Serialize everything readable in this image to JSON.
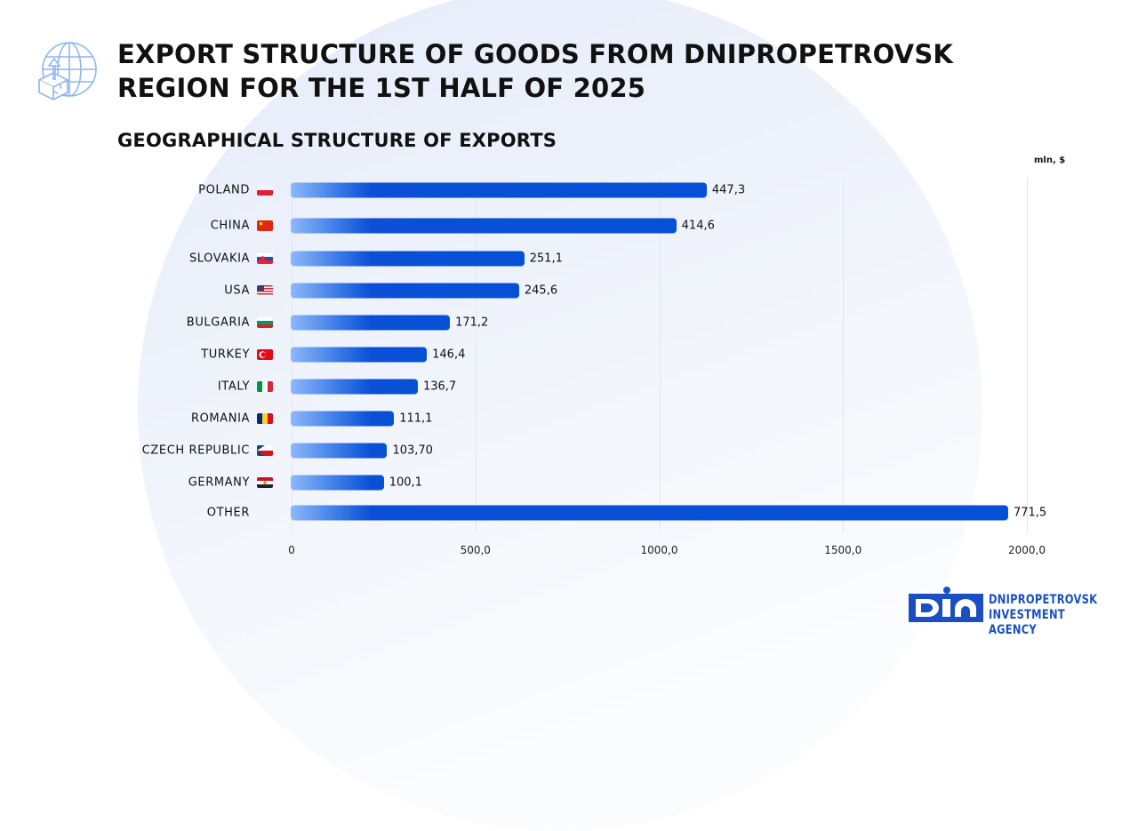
{
  "header": {
    "title_line1": "EXPORT STRUCTURE OF GOODS FROM DNIPROPETROVSK",
    "title_line2": "REGION FOR THE 1ST HALF OF 2025",
    "icon": "globe-export-box-icon"
  },
  "chart_data": {
    "type": "bar",
    "orientation": "horizontal",
    "title": "GEOGRAPHICAL STRUCTURE OF EXPORTS",
    "unit": "mln, $",
    "categories": [
      "POLAND",
      "CHINA",
      "SLOVAKIA",
      "USA",
      "BULGARIA",
      "TURKEY",
      "ITALY",
      "ROMANIA",
      "CZECH REPUBLIC",
      "GERMANY",
      "OTHER"
    ],
    "value_labels": [
      "447,3",
      "414,6",
      "251,1",
      "245,6",
      "171,2",
      "146,4",
      "136,7",
      "111,1",
      "103,70",
      "100,1",
      "771,5"
    ],
    "values": [
      447.3,
      414.6,
      251.1,
      245.6,
      171.2,
      146.4,
      136.7,
      111.1,
      103.7,
      100.1,
      771.5
    ],
    "flags": [
      "poland-flag",
      "china-flag",
      "slovakia-flag",
      "usa-flag",
      "bulgaria-flag",
      "turkey-flag",
      "italy-flag",
      "romania-flag",
      "czech-flag",
      "egypt-style-flag",
      ""
    ],
    "x_ticks": [
      "0",
      "500,0",
      "1000,0",
      "1500,0",
      "2000,0"
    ],
    "xlim": [
      0,
      2000
    ],
    "grid": true,
    "bar_color": "#0550d6",
    "bar_gradient_start": "#8db8fa"
  },
  "footer": {
    "logo_letters": "DIA",
    "org_line1": "DNIPROPETROVSK",
    "org_line2": "INVESTMENT AGENCY",
    "brand_color": "#1a4fc2"
  }
}
